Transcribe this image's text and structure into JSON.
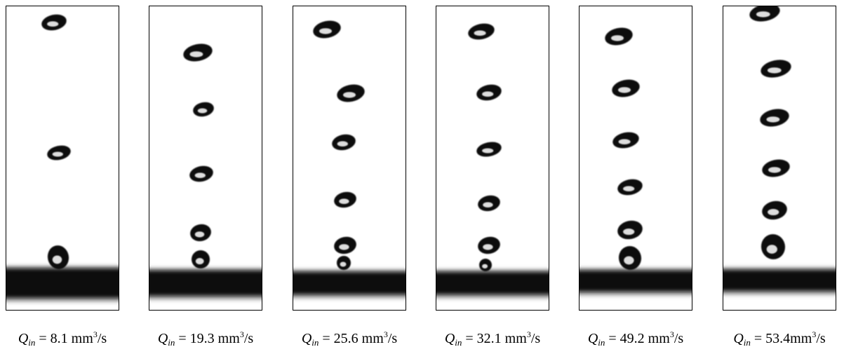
{
  "panels": [
    {
      "caption": {
        "symbol": "Q",
        "subscript": "in",
        "text": " = 8.1 mm",
        "superscript": "3",
        "unit": "/s"
      }
    },
    {
      "caption": {
        "symbol": "Q",
        "subscript": "in",
        "text": " = 19.3 mm",
        "superscript": "3",
        "unit": "/s"
      }
    },
    {
      "caption": {
        "symbol": "Q",
        "subscript": "in",
        "text": " = 25.6 mm",
        "superscript": "3",
        "unit": "/s"
      }
    },
    {
      "caption": {
        "symbol": "Q",
        "subscript": "in",
        "text": " = 32.1 mm",
        "superscript": "3",
        "unit": "/s"
      }
    },
    {
      "caption": {
        "symbol": "Q",
        "subscript": "in",
        "text": " = 49.2 mm",
        "superscript": "3",
        "unit": "/s"
      }
    },
    {
      "caption": {
        "symbol": "Q",
        "subscript": "in",
        "text": " = 53.4mm",
        "superscript": "3",
        "unit": "/s"
      }
    }
  ]
}
